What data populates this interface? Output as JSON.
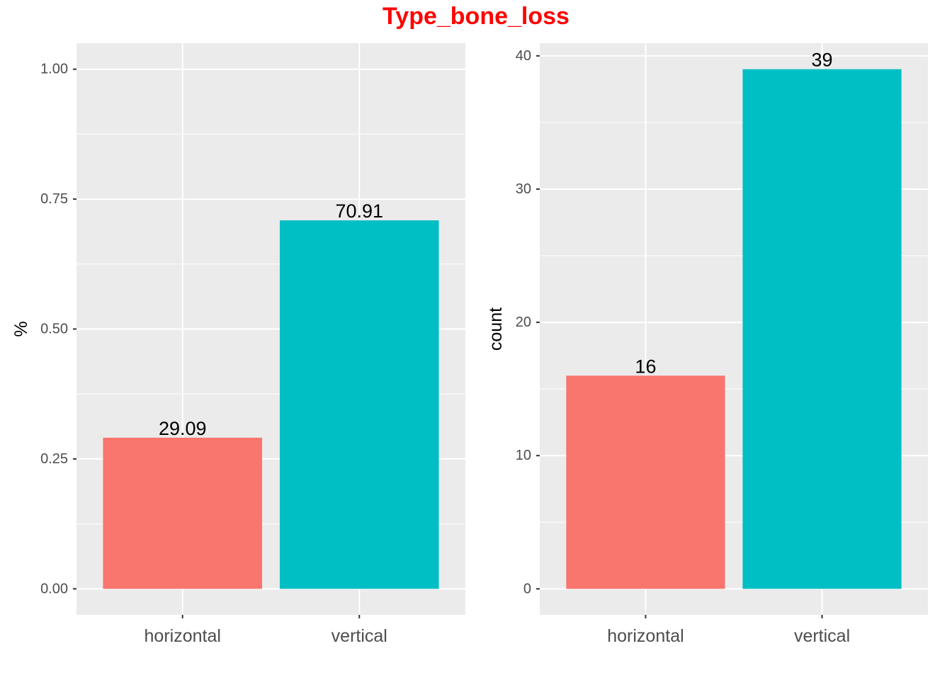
{
  "title": "Type_bone_loss",
  "colors": {
    "title": "#ff0000",
    "horizontal": "#f8766d",
    "vertical": "#00bfc4",
    "panel": "#ebebeb",
    "grid": "#ffffff"
  },
  "chart_data": [
    {
      "type": "bar",
      "categories": [
        "horizontal",
        "vertical"
      ],
      "values": [
        0.2909,
        0.7091
      ],
      "data_labels": [
        "29.09",
        "70.91"
      ],
      "ylabel": "%",
      "ylim": [
        -0.05,
        1.05
      ],
      "yticks": [
        0,
        0.25,
        0.5,
        0.75,
        1
      ],
      "ytick_labels": [
        "0.00",
        "0.25",
        "0.50",
        "0.75",
        "1.00"
      ],
      "grid": true
    },
    {
      "type": "bar",
      "categories": [
        "horizontal",
        "vertical"
      ],
      "values": [
        16,
        39
      ],
      "data_labels": [
        "16",
        "39"
      ],
      "ylabel": "count",
      "ylim": [
        -1.95,
        40.95
      ],
      "yticks": [
        0,
        10,
        20,
        30,
        40
      ],
      "ytick_labels": [
        "0",
        "10",
        "20",
        "30",
        "40"
      ],
      "grid": true
    }
  ]
}
